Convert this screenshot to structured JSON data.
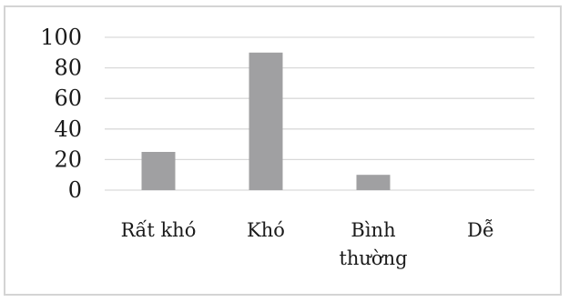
{
  "chart_data": {
    "type": "bar",
    "categories": [
      [
        "Rất khó"
      ],
      [
        "Khó"
      ],
      [
        "Bình",
        "thường"
      ],
      [
        "Dễ"
      ]
    ],
    "values": [
      25,
      90,
      10,
      0
    ],
    "y_ticks": [
      "0",
      "20",
      "40",
      "60",
      "80",
      "100"
    ],
    "ylim": [
      0,
      100
    ],
    "grid": true,
    "legend": "none",
    "colors": {
      "bar": "#a0a0a2",
      "grid": "#d9d9d9",
      "axis": "#d9d9d9",
      "border": "#d4d4d4"
    }
  }
}
